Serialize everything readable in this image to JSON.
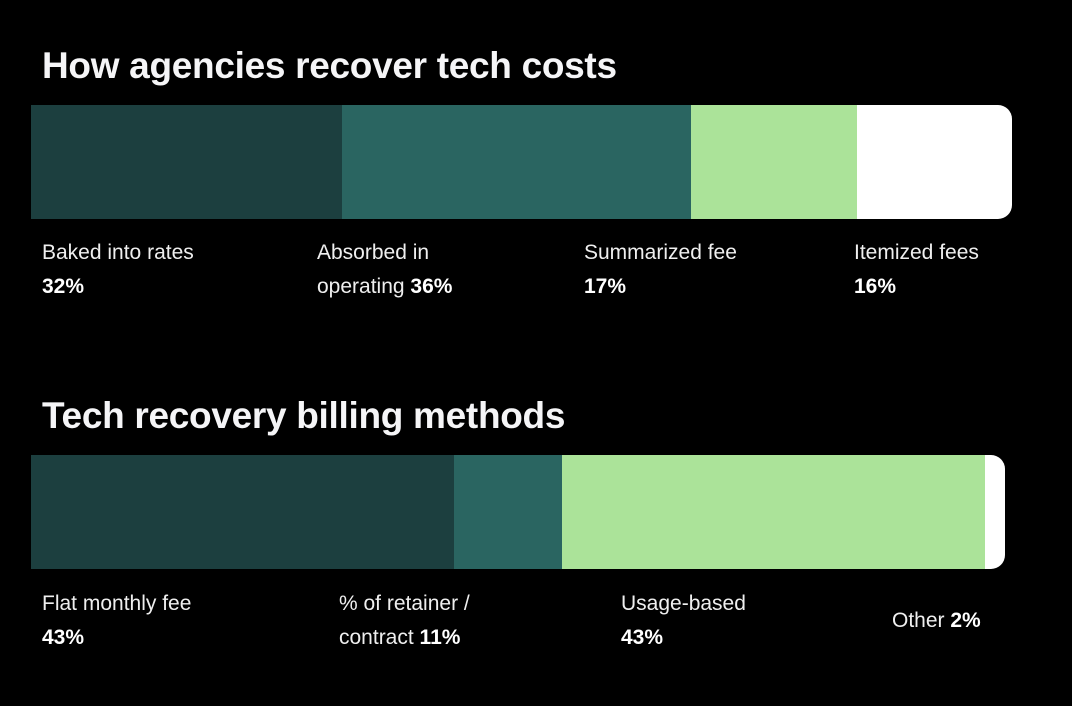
{
  "colors": {
    "background": "#000000",
    "dark_teal": "#1c3f3f",
    "teal": "#2a6561",
    "light_green": "#abe399",
    "white": "#ffffff"
  },
  "chart_data": [
    {
      "type": "stacked-bar",
      "title": "How agencies recover tech costs",
      "orientation": "horizontal",
      "unit": "%",
      "segments": [
        {
          "label_line1": "Baked into rates",
          "label_line2": "",
          "value": 32,
          "pct_text": "32%",
          "color": "#1c3f3f"
        },
        {
          "label_line1": "Absorbed in",
          "label_line2": "operating",
          "value": 36,
          "pct_text": "36%",
          "color": "#2a6561"
        },
        {
          "label_line1": "Summarized fee",
          "label_line2": "",
          "value": 17,
          "pct_text": "17%",
          "color": "#abe399"
        },
        {
          "label_line1": "Itemized fees",
          "label_line2": "",
          "value": 16,
          "pct_text": "16%",
          "color": "#ffffff"
        }
      ]
    },
    {
      "type": "stacked-bar",
      "title": "Tech recovery billing methods",
      "orientation": "horizontal",
      "unit": "%",
      "segments": [
        {
          "label_line1": "Flat monthly fee",
          "label_line2": "",
          "value": 43,
          "pct_text": "43%",
          "color": "#1c3f3f"
        },
        {
          "label_line1": "% of retainer /",
          "label_line2": "contract",
          "value": 11,
          "pct_text": "11%",
          "color": "#2a6561"
        },
        {
          "label_line1": "Usage-based",
          "label_line2": "",
          "value": 43,
          "pct_text": "43%",
          "color": "#abe399"
        },
        {
          "label_line1": "Other",
          "label_line2": "",
          "value": 2,
          "pct_text": "2%",
          "color": "#ffffff"
        }
      ]
    }
  ]
}
